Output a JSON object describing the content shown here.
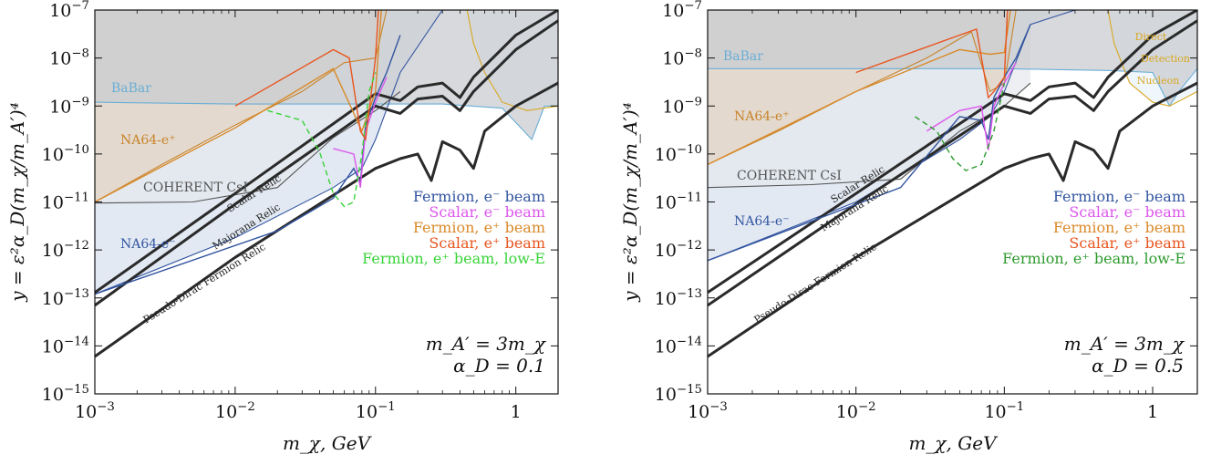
{
  "panels": [
    {
      "type": "line",
      "xlabel": "m_χ, GeV",
      "ylabel": "y = ε²α_D(m_χ/m_A′)⁴",
      "xscale": "log",
      "yscale": "log",
      "xlim": [
        0.001,
        2.0
      ],
      "ylim": [
        1e-15,
        1e-07
      ],
      "xticks": [
        {
          "v": 0.001,
          "b": "10",
          "e": "−3"
        },
        {
          "v": 0.01,
          "b": "10",
          "e": "−2"
        },
        {
          "v": 0.1,
          "b": "10",
          "e": "−1"
        },
        {
          "v": 1,
          "b": "1",
          "e": ""
        }
      ],
      "yticks": [
        {
          "v": 1e-07,
          "b": "10",
          "e": "−7"
        },
        {
          "v": 1e-08,
          "b": "10",
          "e": "−8"
        },
        {
          "v": 1e-09,
          "b": "10",
          "e": "−9"
        },
        {
          "v": 1e-10,
          "b": "10",
          "e": "−10"
        },
        {
          "v": 1e-11,
          "b": "10",
          "e": "−11"
        },
        {
          "v": 1e-12,
          "b": "10",
          "e": "−12"
        },
        {
          "v": 1e-13,
          "b": "10",
          "e": "−13"
        },
        {
          "v": 1e-14,
          "b": "10",
          "e": "−14"
        },
        {
          "v": 1e-15,
          "b": "10",
          "e": "−15"
        }
      ],
      "params": [
        "m_A′ = 3m_χ",
        "α_D = 0.1"
      ],
      "regions": [
        {
          "name": "BaBar",
          "color": "#6aaed6",
          "fill": "#c9ccd0",
          "boundary": [
            [
              0.001,
              1.2e-09
            ],
            [
              0.01,
              1.1e-09
            ],
            [
              0.1,
              1.1e-09
            ],
            [
              0.3,
              1.1e-09
            ],
            [
              0.8,
              9e-10
            ],
            [
              1.3,
              2e-10
            ],
            [
              1.6,
              1e-09
            ],
            [
              2.0,
              1e-09
            ]
          ]
        },
        {
          "name": "NA64-e⁺",
          "color": "#c8842a",
          "fill": "#e2d2c0",
          "boundary": [
            [
              0.001,
              1e-11
            ],
            [
              0.003,
              6e-11
            ],
            [
              0.01,
              4e-10
            ],
            [
              0.03,
              2e-09
            ],
            [
              0.06,
              8e-09
            ],
            [
              0.1,
              1e-08
            ],
            [
              0.12,
              1e-07
            ]
          ]
        },
        {
          "name": "NA64-e⁻",
          "color": "#3355a0",
          "fill": "#d6e0ee",
          "boundary": [
            [
              0.001,
              1.2e-13
            ],
            [
              0.01,
              1.8e-12
            ],
            [
              0.05,
              2e-11
            ],
            [
              0.08,
              5e-11
            ],
            [
              0.1,
              2e-10
            ],
            [
              0.15,
              5e-09
            ],
            [
              0.3,
              1e-07
            ]
          ]
        },
        {
          "name": "COHERENT CsI",
          "color": "#555555",
          "fill": "#e6e8ec",
          "boundary": [
            [
              0.001,
              9.5e-12
            ],
            [
              0.005,
              1e-11
            ],
            [
              0.02,
              2e-11
            ],
            [
              0.05,
              2.2e-10
            ],
            [
              0.1,
              8e-10
            ],
            [
              0.15,
              2e-09
            ]
          ]
        },
        {
          "name": "Direct Detection Nucleon",
          "color": "#d9a620",
          "fill": "#e8f4fc",
          "boundary": [
            [
              0.45,
              1e-07
            ],
            [
              0.5,
              2e-08
            ],
            [
              0.6,
              5e-09
            ],
            [
              0.8,
              1.2e-09
            ],
            [
              1.2,
              8e-10
            ],
            [
              2.0,
              1e-09
            ]
          ]
        }
      ],
      "relics": [
        {
          "name": "Scalar Relic",
          "x": [
            0.001,
            0.01,
            0.1,
            0.15,
            0.2,
            0.3,
            0.4,
            0.5,
            1.0,
            2.0
          ],
          "y": [
            1.3e-13,
            1.5e-11,
            1.8e-09,
            1.3e-09,
            2.5e-09,
            3e-09,
            1.5e-09,
            4e-09,
            3e-08,
            1e-07
          ]
        },
        {
          "name": "Majorana Relic",
          "x": [
            0.001,
            0.01,
            0.1,
            0.15,
            0.2,
            0.3,
            0.4,
            0.5,
            1.0,
            2.0
          ],
          "y": [
            7e-14,
            9e-12,
            1e-09,
            7e-10,
            1.4e-09,
            1.6e-09,
            8e-10,
            2e-09,
            1.5e-08,
            6e-08
          ]
        },
        {
          "name": "Pseudo-Dirac Fermion Relic",
          "x": [
            0.001,
            0.01,
            0.1,
            0.15,
            0.2,
            0.25,
            0.3,
            0.4,
            0.5,
            0.6,
            1.0,
            2.0
          ],
          "y": [
            6e-15,
            7e-13,
            5e-11,
            8e-11,
            1e-10,
            2.8e-11,
            1.8e-10,
            1.2e-10,
            5e-11,
            3e-10,
            1e-09,
            3e-09
          ]
        }
      ],
      "beams": [
        {
          "name": "Fermion, e⁻ beam",
          "color": "#3355a0",
          "dash": false,
          "x": [
            0.001,
            0.02,
            0.05,
            0.07,
            0.078,
            0.085,
            0.1,
            0.12,
            0.15
          ],
          "y": [
            1.2e-13,
            2.5e-12,
            1.2e-11,
            5e-11,
            2.5e-11,
            4e-10,
            1.5e-09,
            5e-09,
            3e-08
          ]
        },
        {
          "name": "Scalar, e⁻ beam",
          "color": "#dd55ee",
          "dash": false,
          "x": [
            0.05,
            0.07,
            0.078,
            0.085,
            0.1,
            0.12
          ],
          "y": [
            1.3e-10,
            1e-10,
            2e-11,
            3e-10,
            1.2e-09,
            4e-09
          ]
        },
        {
          "name": "Fermion, e⁺ beam",
          "color": "#d98a2a",
          "dash": false,
          "x": [
            0.001,
            0.01,
            0.05,
            0.08,
            0.1,
            0.11
          ],
          "y": [
            1e-11,
            3.5e-10,
            6e-09,
            3e-10,
            2e-09,
            1e-07
          ]
        },
        {
          "name": "Scalar, e⁺ beam",
          "color": "#e8541e",
          "dash": false,
          "x": [
            0.01,
            0.05,
            0.065,
            0.078,
            0.085,
            0.1,
            0.105
          ],
          "y": [
            1e-09,
            1.5e-08,
            1e-08,
            3e-10,
            2e-10,
            1e-08,
            1e-07
          ]
        },
        {
          "name": "Fermion, e⁺ beam, low-E",
          "color": "#39d339",
          "dash": true,
          "x": [
            0.017,
            0.03,
            0.04,
            0.05,
            0.06,
            0.065,
            0.07,
            0.08,
            0.09,
            0.1
          ],
          "y": [
            8e-10,
            5e-10,
            1.1e-10,
            1.5e-11,
            8e-12,
            9e-12,
            1e-11,
            1e-10,
            2e-09,
            5e-09
          ]
        }
      ]
    },
    {
      "type": "line",
      "xlabel": "m_χ, GeV",
      "ylabel": "y = ε²α_D(m_χ/m_A′)⁴",
      "xscale": "log",
      "yscale": "log",
      "xlim": [
        0.001,
        2.0
      ],
      "ylim": [
        1e-15,
        1e-07
      ],
      "xticks": [
        {
          "v": 0.001,
          "b": "10",
          "e": "−3"
        },
        {
          "v": 0.01,
          "b": "10",
          "e": "−2"
        },
        {
          "v": 0.1,
          "b": "10",
          "e": "−1"
        },
        {
          "v": 1,
          "b": "1",
          "e": ""
        }
      ],
      "yticks": [
        {
          "v": 1e-07,
          "b": "10",
          "e": "−7"
        },
        {
          "v": 1e-08,
          "b": "10",
          "e": "−8"
        },
        {
          "v": 1e-09,
          "b": "10",
          "e": "−9"
        },
        {
          "v": 1e-10,
          "b": "10",
          "e": "−10"
        },
        {
          "v": 1e-11,
          "b": "10",
          "e": "−11"
        },
        {
          "v": 1e-12,
          "b": "10",
          "e": "−12"
        },
        {
          "v": 1e-13,
          "b": "10",
          "e": "−13"
        },
        {
          "v": 1e-14,
          "b": "10",
          "e": "−14"
        },
        {
          "v": 1e-15,
          "b": "10",
          "e": "−15"
        }
      ],
      "params": [
        "m_A′ = 3m_χ",
        "α_D = 0.5"
      ],
      "regions": [
        {
          "name": "BaBar",
          "color": "#6aaed6",
          "fill": "#c9ccd0",
          "boundary": [
            [
              0.001,
              6e-09
            ],
            [
              0.01,
              6e-09
            ],
            [
              0.1,
              6e-09
            ],
            [
              0.5,
              5.5e-09
            ],
            [
              1.0,
              5e-09
            ],
            [
              1.3,
              1e-09
            ],
            [
              1.5,
              2e-09
            ],
            [
              2.0,
              6e-09
            ]
          ]
        },
        {
          "name": "NA64-e⁺",
          "color": "#c8842a",
          "fill": "#e2d2c0",
          "boundary": [
            [
              0.001,
              6e-11
            ],
            [
              0.003,
              3e-10
            ],
            [
              0.01,
              2e-09
            ],
            [
              0.03,
              1e-08
            ],
            [
              0.06,
              3.5e-08
            ],
            [
              0.08,
              2e-09
            ],
            [
              0.1,
              3e-09
            ],
            [
              0.12,
              1e-07
            ]
          ]
        },
        {
          "name": "NA64-e⁻",
          "color": "#3355a0",
          "fill": "#d6e0ee",
          "boundary": [
            [
              0.001,
              6e-13
            ],
            [
              0.01,
              1e-11
            ],
            [
              0.05,
              2e-10
            ],
            [
              0.08,
              6e-10
            ],
            [
              0.1,
              2e-09
            ],
            [
              0.15,
              5e-08
            ],
            [
              0.3,
              1e-07
            ]
          ]
        },
        {
          "name": "COHERENT CsI",
          "color": "#555555",
          "fill": "#e6e8ec",
          "boundary": [
            [
              0.001,
              2e-11
            ],
            [
              0.005,
              2.3e-11
            ],
            [
              0.02,
              3e-11
            ],
            [
              0.05,
              3e-10
            ],
            [
              0.1,
              1e-09
            ],
            [
              0.15,
              3e-09
            ]
          ]
        },
        {
          "name": "Direct Detection Nucleon",
          "color": "#d9a620",
          "fill": "#e8f4fc",
          "boundary": [
            [
              0.5,
              1e-07
            ],
            [
              0.55,
              2e-08
            ],
            [
              0.7,
              3e-09
            ],
            [
              1.0,
              1.2e-09
            ],
            [
              1.3,
              1e-09
            ],
            [
              2.0,
              2e-09
            ]
          ]
        }
      ],
      "relics": [
        {
          "name": "Scalar Relic",
          "x": [
            0.001,
            0.01,
            0.1,
            0.15,
            0.2,
            0.3,
            0.4,
            0.5,
            1.0,
            2.0
          ],
          "y": [
            1.3e-13,
            1.5e-11,
            1.8e-09,
            1.3e-09,
            2.5e-09,
            3e-09,
            1.5e-09,
            4e-09,
            3e-08,
            1e-07
          ]
        },
        {
          "name": "Majorana Relic",
          "x": [
            0.001,
            0.01,
            0.1,
            0.15,
            0.2,
            0.3,
            0.4,
            0.5,
            1.0,
            2.0
          ],
          "y": [
            7e-14,
            9e-12,
            1e-09,
            7e-10,
            1.4e-09,
            1.6e-09,
            8e-10,
            2e-09,
            1.5e-08,
            6e-08
          ]
        },
        {
          "name": "Pseudo-Dirac Fermion Relic",
          "x": [
            0.001,
            0.01,
            0.1,
            0.15,
            0.2,
            0.25,
            0.3,
            0.4,
            0.5,
            0.6,
            1.0,
            2.0
          ],
          "y": [
            6e-15,
            7e-13,
            5e-11,
            8e-11,
            1e-10,
            2.8e-11,
            1.8e-10,
            1.2e-10,
            5e-11,
            3e-10,
            1e-09,
            3e-09
          ]
        }
      ],
      "beams": [
        {
          "name": "Fermion, e⁻ beam",
          "color": "#3355a0",
          "dash": false,
          "x": [
            0.001,
            0.02,
            0.05,
            0.07,
            0.078,
            0.085,
            0.1,
            0.12,
            0.15
          ],
          "y": [
            6e-13,
            2e-11,
            6e-10,
            5e-10,
            2e-10,
            1.5e-09,
            4e-09,
            1e-08,
            5e-08
          ]
        },
        {
          "name": "Scalar, e⁻ beam",
          "color": "#dd55ee",
          "dash": false,
          "x": [
            0.03,
            0.05,
            0.07,
            0.078,
            0.085,
            0.1,
            0.12
          ],
          "y": [
            3e-10,
            8e-10,
            1e-09,
            1.2e-10,
            1e-09,
            3e-09,
            8e-09
          ]
        },
        {
          "name": "Fermion, e⁺ beam",
          "color": "#d98a2a",
          "dash": false,
          "x": [
            0.001,
            0.01,
            0.05,
            0.08,
            0.1,
            0.11
          ],
          "y": [
            6e-11,
            2e-09,
            1.5e-08,
            1.2e-08,
            1.3e-08,
            1e-07
          ]
        },
        {
          "name": "Scalar, e⁺ beam",
          "color": "#e8541e",
          "dash": false,
          "x": [
            0.01,
            0.05,
            0.065,
            0.078,
            0.085,
            0.1,
            0.105
          ],
          "y": [
            5e-09,
            3e-08,
            4e-08,
            1.5e-09,
            2e-09,
            4e-09,
            1e-07
          ]
        },
        {
          "name": "Fermion, e⁺ beam, low-E",
          "color": "#2e9a2e",
          "dash": true,
          "x": [
            0.025,
            0.035,
            0.045,
            0.055,
            0.07,
            0.085,
            0.1
          ],
          "y": [
            6e-10,
            3e-10,
            8e-11,
            4.5e-11,
            6e-11,
            3e-10,
            3e-09
          ]
        }
      ]
    }
  ]
}
